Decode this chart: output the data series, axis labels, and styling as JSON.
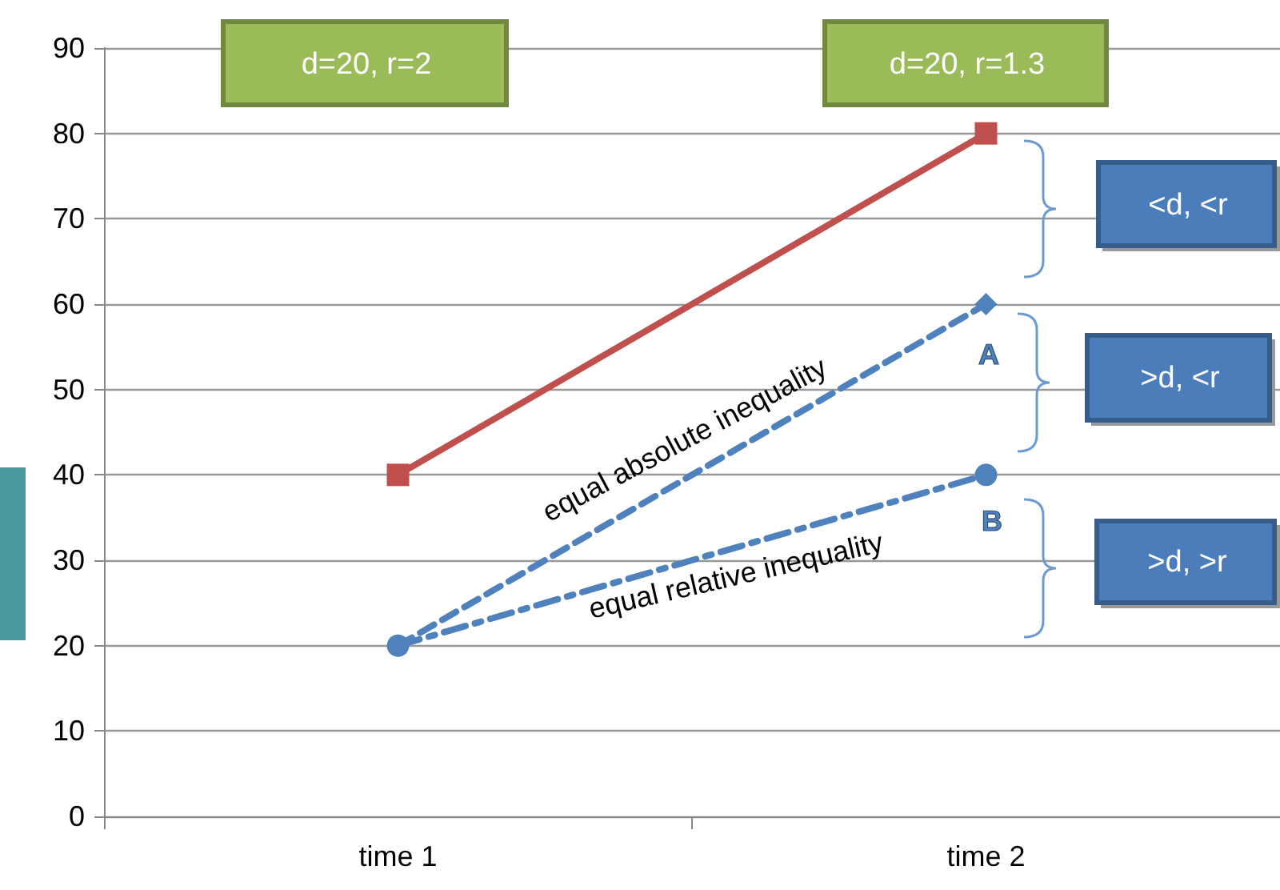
{
  "chart_data": {
    "type": "line",
    "categories": [
      "time 1",
      "time 2"
    ],
    "ylim": [
      0,
      90
    ],
    "yticks": [
      0,
      10,
      20,
      30,
      40,
      50,
      60,
      70,
      80,
      90
    ],
    "grid": "y",
    "series": [
      {
        "color": "#c0504d",
        "values": [
          40,
          80
        ],
        "marker": "square",
        "line_style": "solid"
      },
      {
        "color": "#4f81bd",
        "values": [
          20,
          60
        ],
        "marker": "diamond",
        "line_style": "dashed"
      },
      {
        "color": "#4f81bd",
        "values": [
          20,
          40
        ],
        "marker": "circle",
        "line_style": "dashdot"
      }
    ],
    "annotations": [
      "d=20, r=2",
      "d=20, r=1.3",
      "<d, <r",
      ">d, <r",
      ">d, >r",
      "A",
      "B",
      "equal absolute inequality",
      "equal relative inequality"
    ]
  }
}
